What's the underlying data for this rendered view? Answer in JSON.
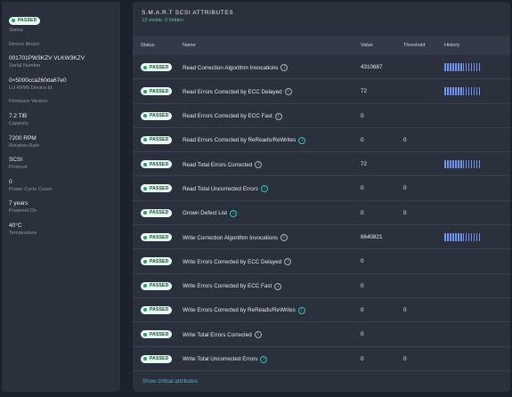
{
  "sidebar": {
    "status_badge": "PASSED",
    "status_label": "Status",
    "items": [
      {
        "value": "Device Model",
        "label": ""
      },
      {
        "value": "001701PW3KZV VLKW3KZV",
        "label": "Serial Number"
      },
      {
        "value": "0×5000cca260da67e0",
        "label": "LU WWN Device Id"
      },
      {
        "value": "Firmware Version",
        "label": ""
      },
      {
        "value": "7.2 TiB",
        "label": "Capacity"
      },
      {
        "value": "7200 RPM",
        "label": "Rotation Rate"
      },
      {
        "value": "SCSI",
        "label": "Protocol"
      },
      {
        "value": "0",
        "label": "Power Cycle Count"
      },
      {
        "value": "7 years",
        "label": "Powered On"
      },
      {
        "value": "40°C",
        "label": "Temperature"
      }
    ]
  },
  "main": {
    "title": "S.M.A.R.T SCSI ATTRIBUTES",
    "subtitle": "13 visible, 0 hidden",
    "columns": {
      "status": "Status",
      "name": "Name",
      "value": "Value",
      "threshold": "Threshold",
      "history": "History"
    },
    "rows": [
      {
        "status": "PASSED",
        "name": "Read Correction Algorithm Invocations",
        "value": "4310687",
        "threshold": "",
        "history": true,
        "icon": "grey"
      },
      {
        "status": "PASSED",
        "name": "Read Errors Corrected by ECC Delayed",
        "value": "72",
        "threshold": "",
        "history": true,
        "icon": "grey"
      },
      {
        "status": "PASSED",
        "name": "Read Errors Corrected by ECC Fast",
        "value": "0",
        "threshold": "",
        "history": false,
        "icon": "grey"
      },
      {
        "status": "PASSED",
        "name": "Read Errors Corrected by ReReads/ReWrites",
        "value": "0",
        "threshold": "0",
        "history": false,
        "icon": "teal"
      },
      {
        "status": "PASSED",
        "name": "Read Total Errors Corrected",
        "value": "72",
        "threshold": "",
        "history": true,
        "icon": "grey"
      },
      {
        "status": "PASSED",
        "name": "Read Total Uncorrected Errors",
        "value": "0",
        "threshold": "0",
        "history": false,
        "icon": "teal"
      },
      {
        "status": "PASSED",
        "name": "Grown Defect List",
        "value": "0",
        "threshold": "0",
        "history": false,
        "icon": "teal"
      },
      {
        "status": "PASSED",
        "name": "Write Correction Algorithm Invocations",
        "value": "6640821",
        "threshold": "",
        "history": true,
        "icon": "grey"
      },
      {
        "status": "PASSED",
        "name": "Write Errors Corrected by ECC Delayed",
        "value": "0",
        "threshold": "",
        "history": false,
        "icon": "grey"
      },
      {
        "status": "PASSED",
        "name": "Write Errors Corrected by ECC Fast",
        "value": "0",
        "threshold": "",
        "history": false,
        "icon": "grey"
      },
      {
        "status": "PASSED",
        "name": "Write Errors Corrected by ReReads/ReWrites",
        "value": "0",
        "threshold": "0",
        "history": false,
        "icon": "teal"
      },
      {
        "status": "PASSED",
        "name": "Write Total Errors Corrected",
        "value": "0",
        "threshold": "",
        "history": false,
        "icon": "grey"
      },
      {
        "status": "PASSED",
        "name": "Write Total Uncorrected Errors",
        "value": "0",
        "threshold": "0",
        "history": false,
        "icon": "teal"
      }
    ],
    "footer_link": "Show critical attributes"
  },
  "colors": {
    "passed_bg": "#e7fbf1",
    "passed_dot": "#1aa566",
    "history_bar": "#6f93f5",
    "teal_icon": "#2ec4b6"
  }
}
